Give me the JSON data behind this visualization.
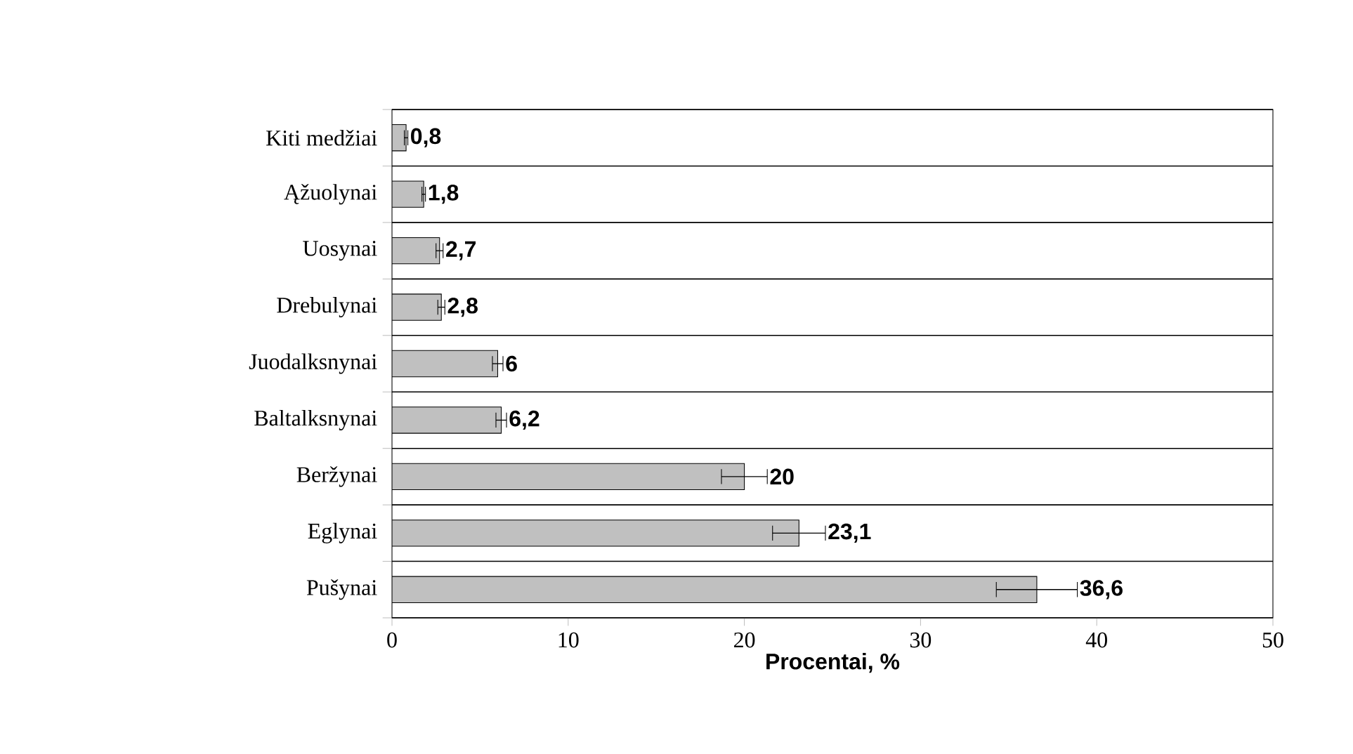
{
  "chart_data": {
    "type": "bar",
    "orientation": "horizontal",
    "xlabel": "Procentai, %",
    "categories": [
      "Kiti medžiai",
      "Ąžuolynai",
      "Uosynai",
      "Drebulynai",
      "Juodalksnynai",
      "Baltalksnynai",
      "Beržynai",
      "Eglynai",
      "Pušynai"
    ],
    "values": [
      0.8,
      1.8,
      2.7,
      2.8,
      6,
      6.2,
      20,
      23.1,
      36.6
    ],
    "errors": [
      0.1,
      0.1,
      0.2,
      0.2,
      0.3,
      0.3,
      1.3,
      1.5,
      2.3
    ],
    "value_labels": [
      "0,8",
      "1,8",
      "2,7",
      "2,8",
      "6",
      "6,2",
      "20",
      "23,1",
      "36,6"
    ],
    "color": "#c0c0c0",
    "xlim": [
      0,
      50
    ],
    "xticks": [
      0,
      10,
      20,
      30,
      40,
      50
    ],
    "grid": "y"
  }
}
